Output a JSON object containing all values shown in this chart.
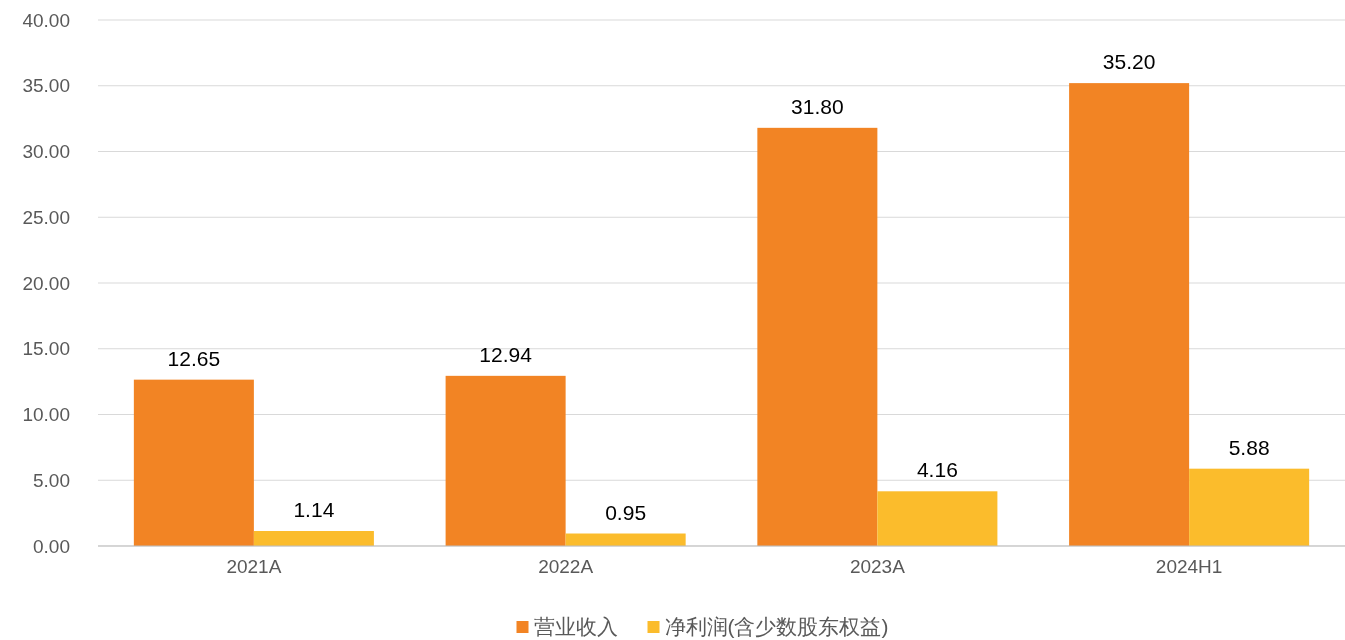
{
  "chart_data": {
    "type": "bar",
    "categories": [
      "2021A",
      "2022A",
      "2023A",
      "2024H1"
    ],
    "series": [
      {
        "name": "营业收入",
        "color": "#f28424",
        "values": [
          12.65,
          12.94,
          31.8,
          35.2
        ],
        "value_labels": [
          "12.65",
          "12.94",
          "31.80",
          "35.20"
        ]
      },
      {
        "name": "净利润(含少数股东权益)",
        "color": "#fbbc2c",
        "values": [
          1.14,
          0.95,
          4.16,
          5.88
        ],
        "value_labels": [
          "1.14",
          "0.95",
          "4.16",
          "5.88"
        ]
      }
    ],
    "ylim": [
      0,
      40
    ],
    "yticks": [
      {
        "value": 0,
        "label": "0.00"
      },
      {
        "value": 5,
        "label": "5.00"
      },
      {
        "value": 10,
        "label": "10.00"
      },
      {
        "value": 15,
        "label": "15.00"
      },
      {
        "value": 20,
        "label": "20.00"
      },
      {
        "value": 25,
        "label": "25.00"
      },
      {
        "value": 30,
        "label": "30.00"
      },
      {
        "value": 35,
        "label": "35.00"
      },
      {
        "value": 40,
        "label": "40.00"
      }
    ],
    "grid": "y",
    "legend": "bottom"
  }
}
